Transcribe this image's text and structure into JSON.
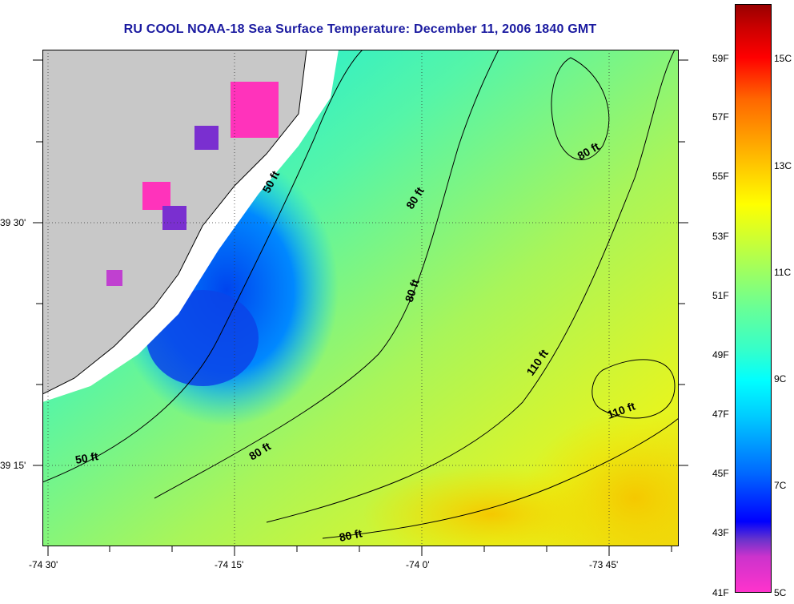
{
  "title": "RU COOL  NOAA-18  Sea Surface Temperature:  December 11, 2006 1840 GMT",
  "x_ticks": [
    "-74 30'",
    "-74 15'",
    "-74 0'",
    "-73 45'"
  ],
  "y_ticks": [
    "39 30'",
    "39 15'"
  ],
  "contour_labels": [
    "50 ft",
    "80 ft",
    "80 ft",
    "80 ft",
    "110 ft",
    "110 ft",
    "80 ft",
    "50 ft",
    "80 ft"
  ],
  "colorbar_f": [
    "59F",
    "57F",
    "55F",
    "53F",
    "51F",
    "49F",
    "47F",
    "45F",
    "43F",
    "41F"
  ],
  "colorbar_c": [
    "15C",
    "13C",
    "11C",
    "9C",
    "7C",
    "5C"
  ],
  "colors": {
    "land": "#c8c8c8",
    "title": "#1a1aa0"
  }
}
